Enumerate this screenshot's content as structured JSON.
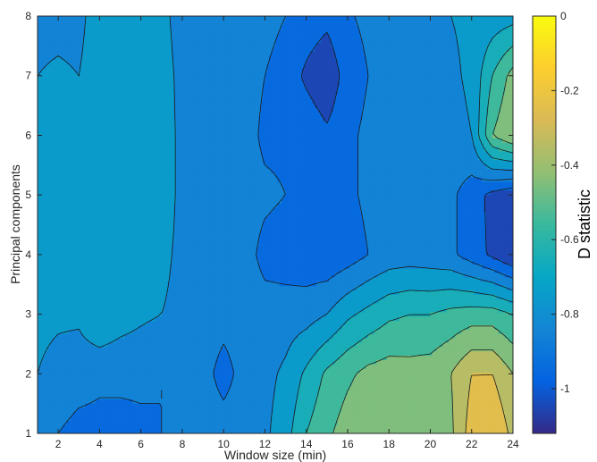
{
  "chart_data": {
    "type": "heatmap",
    "subtype": "filled-contour",
    "xlabel": "Window size (min)",
    "ylabel": "Principal components",
    "colorbar_label": "D statistic",
    "xlim": [
      1,
      24
    ],
    "ylim": [
      1,
      8
    ],
    "x_ticks": [
      2,
      4,
      6,
      8,
      10,
      12,
      14,
      16,
      18,
      20,
      22,
      24
    ],
    "y_ticks": [
      1,
      2,
      3,
      4,
      5,
      6,
      7,
      8
    ],
    "colorbar_range": [
      -1.12,
      0
    ],
    "colorbar_ticks": [
      0,
      -0.2,
      -0.4,
      -0.6,
      -0.8,
      -1
    ],
    "colormap": "parula",
    "contour_levels": [
      -1.1,
      -1.0,
      -0.9,
      -0.8,
      -0.7,
      -0.6,
      -0.5,
      -0.4,
      -0.3,
      -0.2,
      -0.1
    ],
    "x": [
      1,
      2,
      3,
      4,
      5,
      6,
      7,
      8,
      9,
      10,
      11,
      12,
      13,
      14,
      15,
      16,
      17,
      18,
      19,
      20,
      21,
      22,
      23,
      24
    ],
    "y": [
      1,
      2,
      3,
      4,
      5,
      6,
      7,
      8
    ],
    "z": [
      [
        -0.83,
        -0.9,
        -0.93,
        -0.93,
        -0.93,
        -0.92,
        -0.9,
        -0.87,
        -0.84,
        -0.85,
        -0.84,
        -0.82,
        -0.74,
        -0.6,
        -0.52,
        -0.45,
        -0.42,
        -0.41,
        -0.43,
        -0.46,
        -0.42,
        -0.25,
        -0.2,
        -0.33
      ],
      [
        -0.8,
        -0.84,
        -0.86,
        -0.88,
        -0.88,
        -0.88,
        -0.9,
        -0.9,
        -0.86,
        -0.94,
        -0.86,
        -0.83,
        -0.78,
        -0.68,
        -0.58,
        -0.52,
        -0.47,
        -0.45,
        -0.46,
        -0.45,
        -0.4,
        -0.3,
        -0.3,
        -0.4
      ],
      [
        -0.77,
        -0.78,
        -0.78,
        -0.7,
        -0.75,
        -0.78,
        -0.8,
        -0.82,
        -0.84,
        -0.86,
        -0.85,
        -0.86,
        -0.85,
        -0.84,
        -0.8,
        -0.72,
        -0.67,
        -0.62,
        -0.6,
        -0.6,
        -0.57,
        -0.55,
        -0.55,
        -0.6
      ],
      [
        -0.76,
        -0.74,
        -0.72,
        -0.72,
        -0.75,
        -0.76,
        -0.78,
        -0.82,
        -0.84,
        -0.86,
        -0.86,
        -0.93,
        -0.95,
        -0.97,
        -0.98,
        -0.95,
        -0.9,
        -0.86,
        -0.85,
        -0.86,
        -0.88,
        -0.95,
        -1.02,
        -1.1
      ],
      [
        -0.76,
        -0.72,
        -0.75,
        -0.74,
        -0.72,
        -0.73,
        -0.76,
        -0.82,
        -0.86,
        -0.86,
        -0.86,
        -0.88,
        -0.9,
        -0.92,
        -0.98,
        -0.92,
        -0.88,
        -0.86,
        -0.85,
        -0.8,
        -0.88,
        -0.95,
        -1.03,
        -1.08
      ],
      [
        -0.8,
        -0.78,
        -0.79,
        -0.74,
        -0.72,
        -0.72,
        -0.76,
        -0.82,
        -0.86,
        -0.86,
        -0.86,
        -0.92,
        -0.92,
        -0.93,
        -0.98,
        -0.92,
        -0.88,
        -0.86,
        -0.84,
        -0.82,
        -0.84,
        -0.8,
        -0.5,
        -0.4
      ],
      [
        -0.8,
        -0.79,
        -0.8,
        -0.76,
        -0.74,
        -0.74,
        -0.77,
        -0.82,
        -0.86,
        -0.86,
        -0.86,
        -0.9,
        -0.94,
        -1.02,
        -1.08,
        -0.95,
        -0.9,
        -0.88,
        -0.86,
        -0.84,
        -0.82,
        -0.78,
        -0.6,
        -0.46
      ],
      [
        -0.82,
        -0.82,
        -0.82,
        -0.76,
        -0.74,
        -0.74,
        -0.78,
        -0.83,
        -0.86,
        -0.86,
        -0.86,
        -0.87,
        -0.9,
        -0.94,
        -0.97,
        -0.91,
        -0.88,
        -0.86,
        -0.85,
        -0.83,
        -0.8,
        -0.78,
        -0.76,
        -0.74
      ]
    ]
  }
}
